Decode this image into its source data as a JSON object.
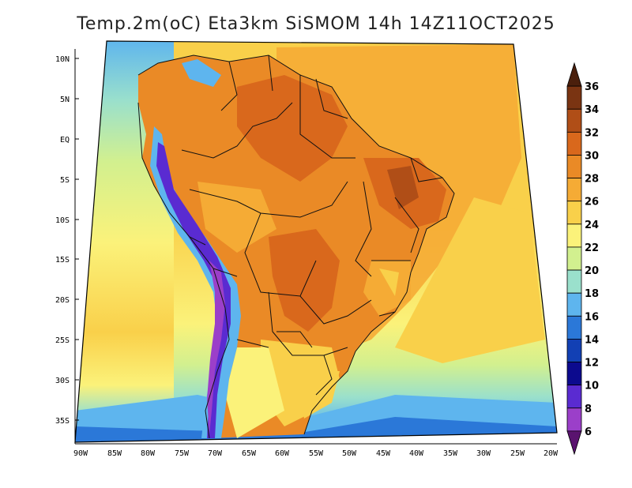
{
  "title": "Temp.2m(oC) Eta3km SiSMOM 14h 14Z11OCT2025",
  "lat_labels": [
    "10N",
    "5N",
    "EQ",
    "5S",
    "10S",
    "15S",
    "20S",
    "25S",
    "30S",
    "35S"
  ],
  "lon_labels": [
    "90W",
    "85W",
    "80W",
    "75W",
    "70W",
    "65W",
    "60W",
    "55W",
    "50W",
    "45W",
    "40W",
    "35W",
    "30W",
    "25W",
    "20W"
  ],
  "colorbar": {
    "ticks": [
      "36",
      "34",
      "32",
      "30",
      "28",
      "26",
      "24",
      "22",
      "20",
      "18",
      "16",
      "14",
      "12",
      "10",
      "8",
      "6"
    ],
    "colors": [
      "#4a1f0c",
      "#7a3412",
      "#b04e17",
      "#d9681c",
      "#ea8a26",
      "#f5ab35",
      "#f9d04a",
      "#fbf27a",
      "#d2f08f",
      "#9ae0cc",
      "#5eb5ee",
      "#2b78d8",
      "#1240b4",
      "#0c0a8e",
      "#5a2bd1",
      "#9b3fc9",
      "#5a136f"
    ]
  }
}
